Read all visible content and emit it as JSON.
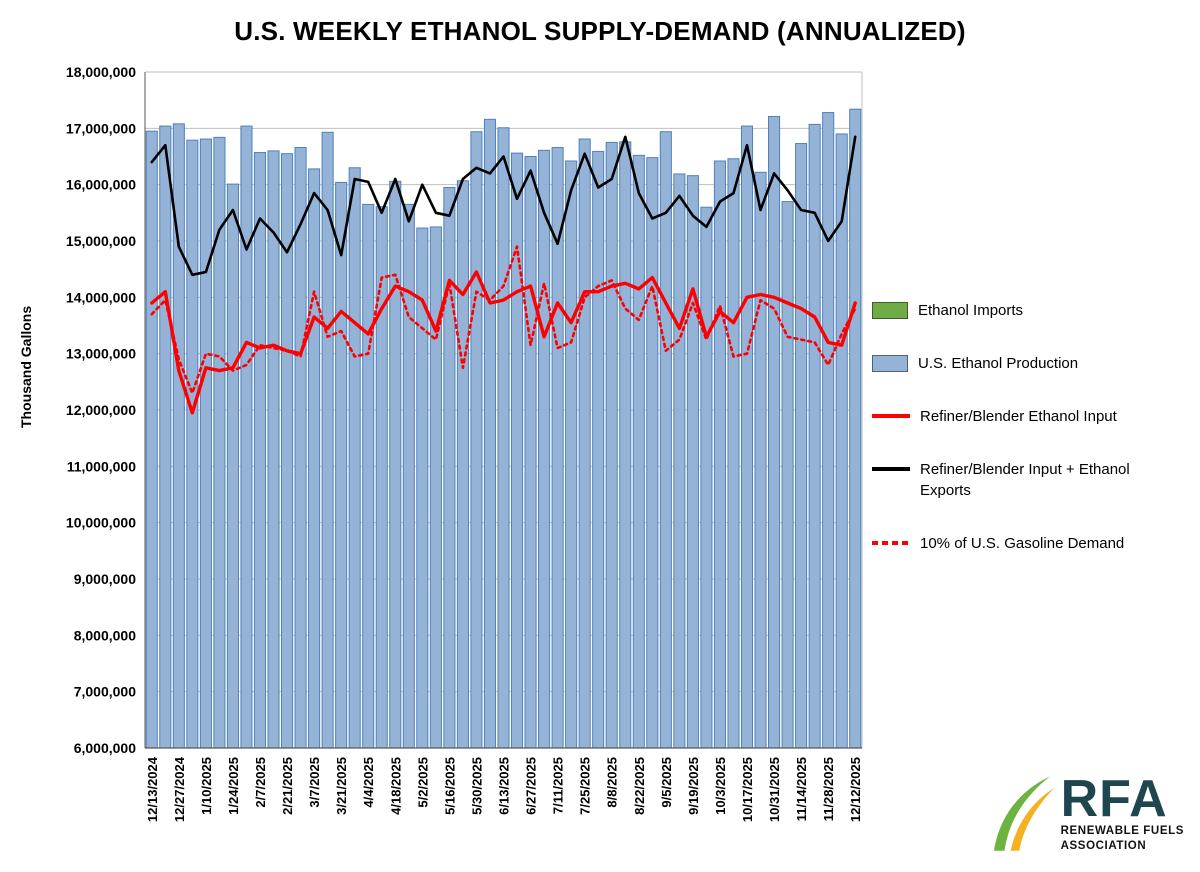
{
  "title": "U.S. WEEKLY ETHANOL SUPPLY-DEMAND (ANNUALIZED)",
  "y_axis_title": "Thousand Gallons",
  "legend": {
    "items": [
      {
        "label": "Ethanol Imports",
        "swatch": "bar",
        "color": "#6FAC46"
      },
      {
        "label": "U.S. Ethanol Production",
        "swatch": "bar",
        "color": "#95B3D7"
      },
      {
        "label": "Refiner/Blender Ethanol Input",
        "swatch": "line",
        "color": "#FF0000"
      },
      {
        "label": "Refiner/Blender Input + Ethanol Exports",
        "swatch": "line",
        "color": "#000000"
      },
      {
        "label": "10% of U.S. Gasoline Demand",
        "swatch": "dotted-line",
        "color": "#FF0000"
      }
    ]
  },
  "logo": {
    "name": "RFA",
    "tagline_line1": "RENEWABLE FUELS",
    "tagline_line2": "ASSOCIATION"
  },
  "colors": {
    "bar_fill": "#95B3D7",
    "bar_stroke": "#4F81BD",
    "imports_green": "#6FAC46",
    "red_line": "#FF0000",
    "black_line": "#000000",
    "gridline": "#BFBFBF",
    "axis": "#595959"
  },
  "chart_data": {
    "type": "bar+line combo",
    "title": "U.S. WEEKLY ETHANOL SUPPLY-DEMAND (ANNUALIZED)",
    "ylabel": "Thousand Gallons",
    "ylim": [
      6000000,
      18000000
    ],
    "ytick_step": 1000000,
    "ytick_labels": [
      "6,000,000",
      "7,000,000",
      "8,000,000",
      "9,000,000",
      "10,000,000",
      "11,000,000",
      "12,000,000",
      "13,000,000",
      "14,000,000",
      "15,000,000",
      "16,000,000",
      "17,000,000",
      "18,000,000"
    ],
    "grid": "horizontal",
    "legend_position": "right",
    "x": [
      "12/13/2024",
      "12/20/2024",
      "12/27/2024",
      "1/3/2025",
      "1/10/2025",
      "1/17/2025",
      "1/24/2025",
      "1/31/2025",
      "2/7/2025",
      "2/14/2025",
      "2/21/2025",
      "2/28/2025",
      "3/7/2025",
      "3/14/2025",
      "3/21/2025",
      "3/28/2025",
      "4/4/2025",
      "4/11/2025",
      "4/18/2025",
      "4/25/2025",
      "5/2/2025",
      "5/9/2025",
      "5/16/2025",
      "5/23/2025",
      "5/30/2025",
      "6/6/2025",
      "6/13/2025",
      "6/20/2025",
      "6/27/2025",
      "7/4/2025",
      "7/11/2025",
      "7/18/2025",
      "7/25/2025",
      "8/1/2025",
      "8/8/2025",
      "8/15/2025",
      "8/22/2025",
      "8/29/2025",
      "9/5/2025",
      "9/12/2025",
      "9/19/2025",
      "9/26/2025",
      "10/3/2025",
      "10/10/2025",
      "10/17/2025",
      "10/24/2025",
      "10/31/2025",
      "11/7/2025",
      "11/14/2025",
      "11/21/2025",
      "11/28/2025",
      "12/5/2025",
      "12/12/2025"
    ],
    "x_tick_labels_shown": [
      "12/13/2024",
      "12/27/2024",
      "1/10/2025",
      "1/24/2025",
      "2/7/2025",
      "2/21/2025",
      "3/7/2025",
      "3/21/2025",
      "4/4/2025",
      "4/18/2025",
      "5/2/2025",
      "5/16/2025",
      "5/30/2025",
      "6/13/2025",
      "6/27/2025",
      "7/11/2025",
      "7/25/2025",
      "8/8/2025",
      "8/22/2025",
      "9/5/2025",
      "9/19/2025",
      "10/3/2025",
      "10/17/2025",
      "10/31/2025",
      "11/14/2025",
      "11/28/2025",
      "12/12/2025"
    ],
    "series": [
      {
        "name": "Ethanol Imports",
        "type": "bar",
        "color": "#6FAC46",
        "values": [
          0,
          0,
          0,
          0,
          0,
          0,
          0,
          0,
          0,
          0,
          0,
          0,
          0,
          0,
          0,
          0,
          0,
          0,
          0,
          0,
          0,
          0,
          0,
          0,
          0,
          0,
          0,
          0,
          0,
          0,
          0,
          0,
          0,
          0,
          0,
          0,
          0,
          0,
          0,
          0,
          0,
          0,
          0,
          0,
          0,
          0,
          0,
          0,
          0,
          0,
          0,
          0,
          0
        ]
      },
      {
        "name": "U.S. Ethanol Production",
        "type": "bar",
        "color": "#95B3D7",
        "stroke": "#4F81BD",
        "values": [
          16950000,
          17040000,
          17080000,
          16790000,
          16810000,
          16840000,
          16010000,
          17040000,
          16570000,
          16600000,
          16550000,
          16660000,
          16280000,
          16930000,
          16040000,
          16300000,
          15650000,
          15610000,
          16060000,
          15650000,
          15230000,
          15250000,
          15950000,
          16070000,
          16940000,
          17160000,
          17010000,
          16560000,
          16500000,
          16610000,
          16660000,
          16420000,
          16810000,
          16590000,
          16750000,
          16760000,
          16520000,
          16480000,
          16940000,
          16190000,
          16160000,
          15600000,
          16420000,
          16460000,
          17040000,
          16220000,
          17210000,
          15700000,
          16730000,
          17070000,
          17280000,
          16900000,
          17340000
        ]
      },
      {
        "name": "Refiner/Blender Ethanol Input",
        "type": "line",
        "style": "solid",
        "color": "#FF0000",
        "values": [
          13900000,
          14100000,
          12700000,
          11950000,
          12750000,
          12700000,
          12750000,
          13200000,
          13100000,
          13150000,
          13050000,
          13000000,
          13650000,
          13450000,
          13750000,
          13550000,
          13350000,
          13800000,
          14200000,
          14100000,
          13950000,
          13400000,
          14300000,
          14050000,
          14450000,
          13900000,
          13950000,
          14100000,
          14200000,
          13300000,
          13900000,
          13550000,
          14100000,
          14100000,
          14200000,
          14250000,
          14150000,
          14350000,
          13900000,
          13450000,
          14150000,
          13300000,
          13750000,
          13550000,
          14000000,
          14050000,
          14000000,
          13900000,
          13800000,
          13650000,
          13200000,
          13150000,
          13900000
        ]
      },
      {
        "name": "Refiner/Blender Input + Ethanol Exports",
        "type": "line",
        "style": "solid",
        "color": "#000000",
        "values": [
          16400000,
          16700000,
          14900000,
          14400000,
          14450000,
          15200000,
          15550000,
          14850000,
          15400000,
          15150000,
          14800000,
          15300000,
          15850000,
          15550000,
          14750000,
          16100000,
          16050000,
          15500000,
          16100000,
          15350000,
          16000000,
          15500000,
          15450000,
          16100000,
          16300000,
          16200000,
          16500000,
          15750000,
          16250000,
          15500000,
          14950000,
          15900000,
          16550000,
          15950000,
          16100000,
          16850000,
          15850000,
          15400000,
          15500000,
          15800000,
          15450000,
          15250000,
          15700000,
          15850000,
          16700000,
          15550000,
          16200000,
          15900000,
          15550000,
          15500000,
          15000000,
          15350000,
          16850000
        ]
      },
      {
        "name": "10% of U.S. Gasoline Demand",
        "type": "line",
        "style": "dotted",
        "color": "#FF0000",
        "values": [
          13700000,
          13950000,
          12900000,
          12300000,
          13000000,
          12950000,
          12700000,
          12800000,
          13150000,
          13100000,
          13050000,
          12950000,
          14100000,
          13300000,
          13400000,
          12950000,
          13000000,
          14350000,
          14400000,
          13650000,
          13450000,
          13250000,
          14250000,
          12750000,
          14100000,
          13950000,
          14200000,
          14900000,
          13150000,
          14250000,
          13100000,
          13200000,
          14000000,
          14200000,
          14300000,
          13800000,
          13600000,
          14200000,
          13050000,
          13250000,
          13900000,
          13250000,
          13850000,
          12950000,
          13000000,
          13950000,
          13800000,
          13300000,
          13250000,
          13200000,
          12800000,
          13350000,
          13800000
        ]
      }
    ]
  }
}
